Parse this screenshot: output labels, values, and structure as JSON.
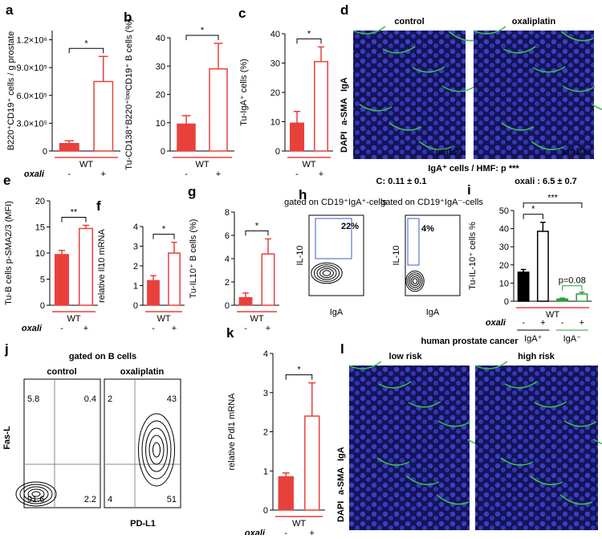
{
  "chart_data": [
    {
      "type": "bar",
      "panel": "a",
      "ylabel": "B220⁺CD19⁺ cells / g prostate",
      "categories": [
        "-",
        "+"
      ],
      "values": [
        80000,
        750000
      ],
      "errors": [
        30000,
        270000
      ],
      "colors": [
        "#e8413c",
        "#e8413c"
      ],
      "fill": [
        "solid",
        "open"
      ],
      "ylim": [
        0,
        1300000
      ],
      "yticks": [
        0,
        {
          "value": 300000,
          "label": "3.0×10⁵"
        },
        {
          "value": 600000,
          "label": "6.0×10⁵"
        },
        {
          "value": 900000,
          "label": "9.0×10⁵"
        },
        {
          "value": 1200000,
          "label": "1.2×10⁶"
        }
      ],
      "group": "WT",
      "group_color": "#e8413c",
      "treatment": "oxali",
      "significance": [
        "*"
      ]
    },
    {
      "type": "bar",
      "panel": "b",
      "ylabel": "Tu-CD138⁺B220⁺ˡᵒʷCD19⁺ B cells (%)",
      "categories": [
        "-",
        "+"
      ],
      "values": [
        9.5,
        29
      ],
      "errors": [
        3,
        9
      ],
      "colors": [
        "#e8413c",
        "#e8413c"
      ],
      "fill": [
        "solid",
        "open"
      ],
      "ylim": [
        0,
        40
      ],
      "yticks": [
        0,
        10,
        20,
        30,
        40
      ],
      "group": "WT",
      "group_color": "#e8413c",
      "significance": [
        "*"
      ]
    },
    {
      "type": "bar",
      "panel": "c",
      "ylabel": "Tu-IgA⁺ cells (%)",
      "categories": [
        "-",
        "+"
      ],
      "values": [
        9.5,
        30.5
      ],
      "errors": [
        4,
        5
      ],
      "colors": [
        "#e8413c",
        "#e8413c"
      ],
      "fill": [
        "solid",
        "open"
      ],
      "ylim": [
        0,
        40
      ],
      "yticks": [
        0,
        10,
        20,
        30,
        40
      ],
      "group": "WT",
      "group_color": "#e8413c",
      "significance": [
        "*"
      ]
    },
    {
      "type": "bar",
      "panel": "e",
      "ylabel": "Tu-B cells p-SMA2/3 (MFI)",
      "categories": [
        "-",
        "+"
      ],
      "values": [
        9.7,
        14.7
      ],
      "errors": [
        0.8,
        0.6
      ],
      "colors": [
        "#e8413c",
        "#e8413c"
      ],
      "fill": [
        "solid",
        "open"
      ],
      "ylim": [
        0,
        20
      ],
      "yticks": [
        0,
        5,
        10,
        15,
        20
      ],
      "group": "WT",
      "group_color": "#e8413c",
      "treatment": "oxali",
      "significance": [
        "**"
      ]
    },
    {
      "type": "bar",
      "panel": "f",
      "ylabel": "relative Il10 mRNA",
      "categories": [
        "-",
        "+"
      ],
      "values": [
        1.25,
        2.65
      ],
      "errors": [
        0.25,
        0.55
      ],
      "colors": [
        "#e8413c",
        "#e8413c"
      ],
      "fill": [
        "solid",
        "open"
      ],
      "ylim": [
        0,
        4
      ],
      "yticks": [
        0,
        1,
        2,
        3,
        4
      ],
      "group": "WT",
      "group_color": "#e8413c",
      "significance": [
        "*"
      ]
    },
    {
      "type": "bar",
      "panel": "g",
      "ylabel": "Tu-IL10⁺ B cells (%)",
      "categories": [
        "-",
        "+"
      ],
      "values": [
        0.65,
        4.4
      ],
      "errors": [
        0.4,
        1.3
      ],
      "colors": [
        "#e8413c",
        "#e8413c"
      ],
      "fill": [
        "solid",
        "open"
      ],
      "ylim": [
        0,
        8
      ],
      "yticks": [
        0,
        2,
        4,
        6,
        8
      ],
      "group": "WT",
      "group_color": "#e8413c",
      "significance": [
        "*"
      ]
    },
    {
      "type": "bar",
      "panel": "i",
      "ylabel": "Tu-IL-10⁺ cells %",
      "categories": [
        "-",
        "+",
        "-",
        "+"
      ],
      "values": [
        16,
        38.5,
        1.2,
        4
      ],
      "errors": [
        1.5,
        5,
        0.5,
        1
      ],
      "colors": [
        "#000000",
        "#000000",
        "#2a9d3a",
        "#2a9d3a"
      ],
      "fill": [
        "solid",
        "open",
        "solid",
        "open"
      ],
      "ylim": [
        0,
        50
      ],
      "yticks": [
        0,
        10,
        20,
        30,
        40,
        50
      ],
      "group": "WT",
      "group_color": "#e8413c",
      "treatment": "oxali",
      "subgroups": [
        "IgA⁺",
        "IgA⁻"
      ],
      "subgroup_colors": [
        "#000000",
        "#2a9d3a"
      ],
      "significance": [
        "*",
        "***",
        "p=0.08"
      ]
    },
    {
      "type": "bar",
      "panel": "k",
      "ylabel": "relative Pdl1 mRNA",
      "categories": [
        "-",
        "+"
      ],
      "values": [
        0.85,
        2.4
      ],
      "errors": [
        0.1,
        0.85
      ],
      "colors": [
        "#e8413c",
        "#e8413c"
      ],
      "fill": [
        "solid",
        "open"
      ],
      "ylim": [
        0,
        4
      ],
      "yticks": [
        0,
        1,
        2,
        3,
        4
      ],
      "group": "WT",
      "group_color": "#e8413c",
      "treatment": "oxali",
      "significance": [
        "*"
      ]
    }
  ],
  "panels": {
    "d": {
      "label": "d",
      "stain": [
        "IgA",
        "a-SMA",
        "DAPI"
      ],
      "titles": [
        "control",
        "oxaliplatin"
      ],
      "scale": "μm100",
      "quant_title": "IgA⁺ cells / HMF: p ***",
      "quant": [
        "C: 0.11 ± 0.1",
        "oxali : 6.5 ± 0.7"
      ]
    },
    "h": {
      "label": "h",
      "plots": [
        {
          "title": "gated on CD19⁺IgA⁺-cells",
          "gate": "22%"
        },
        {
          "title": "gated on CD19⁺IgA⁻-cells",
          "gate": "4%"
        }
      ],
      "ylabel": "IL-10",
      "xlabel": "IgA"
    },
    "j": {
      "label": "j",
      "title": "gated on B cells",
      "plots": [
        {
          "title": "control",
          "quadrants": [
            5.8,
            0.4,
            91.6,
            2.2
          ]
        },
        {
          "title": "oxaliplatin",
          "quadrants": [
            2,
            43,
            4,
            51
          ]
        }
      ],
      "ylabel": "Fas-L",
      "xlabel": "PD-L1"
    },
    "l": {
      "label": "l",
      "title": "human prostate cancer",
      "titles": [
        "low risk",
        "high risk"
      ],
      "stain": [
        "IgA",
        "a-SMA",
        "DAPI"
      ]
    }
  }
}
